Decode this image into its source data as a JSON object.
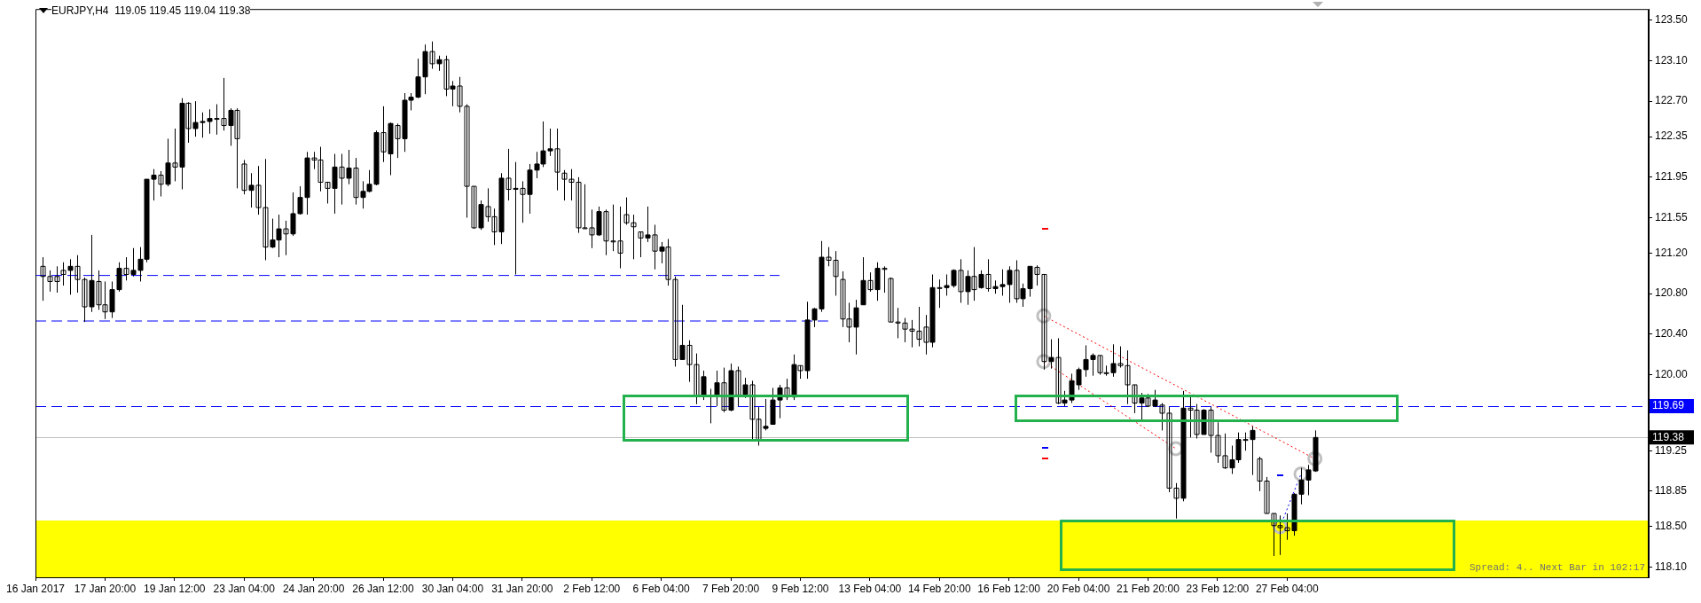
{
  "chart_data": {
    "type": "candlestick",
    "title": "EURJPY,H4  119.05 119.45 119.04 119.38",
    "color": "#000000",
    "categories": [
      "16 Jan 2017",
      null,
      null,
      null,
      null,
      null,
      null,
      null,
      null,
      null,
      "17 Jan 20:00",
      null,
      null,
      null,
      null,
      null,
      null,
      null,
      null,
      null,
      "19 Jan 12:00",
      null,
      null,
      null,
      null,
      null,
      null,
      null,
      null,
      null,
      "23 Jan 04:00",
      null,
      null,
      null,
      null,
      null,
      null,
      null,
      null,
      null,
      "24 Jan 20:00",
      null,
      null,
      null,
      null,
      null,
      null,
      null,
      null,
      null,
      "26 Jan 12:00",
      null,
      null,
      null,
      null,
      null,
      null,
      null,
      null,
      null,
      "30 Jan 04:00",
      null,
      null,
      null,
      null,
      null,
      null,
      null,
      null,
      null,
      "31 Jan 20:00",
      null,
      null,
      null,
      null,
      null,
      null,
      null,
      null,
      null,
      "2 Feb 12:00",
      null,
      null,
      null,
      null,
      null,
      null,
      null,
      null,
      null,
      "6 Feb 04:00",
      null,
      null,
      null,
      null,
      null,
      null,
      null,
      null,
      null,
      "7 Feb 20:00",
      null,
      null,
      null,
      null,
      null,
      null,
      null,
      null,
      null,
      "9 Feb 12:00",
      null,
      null,
      null,
      null,
      null,
      null,
      null,
      null,
      null,
      "13 Feb 04:00",
      null,
      null,
      null,
      null,
      null,
      null,
      null,
      null,
      null,
      "14 Feb 20:00",
      null,
      null,
      null,
      null,
      null,
      null,
      null,
      null,
      null,
      "16 Feb 12:00",
      null,
      null,
      null,
      null,
      null,
      null,
      null,
      null,
      null,
      "20 Feb 04:00",
      null,
      null,
      null,
      null,
      null,
      null,
      null,
      null,
      null,
      "21 Feb 20:00",
      null,
      null,
      null,
      null,
      null,
      null,
      null,
      null,
      null,
      "23 Feb 12:00",
      null,
      null,
      null,
      null,
      null,
      null,
      null,
      null,
      null,
      "27 Feb 04:00",
      null,
      null,
      null,
      null,
      null,
      null,
      null,
      null,
      null,
      null,
      null,
      null,
      null,
      null,
      null,
      null,
      null,
      null,
      null,
      null,
      null,
      null,
      null,
      null,
      null,
      null,
      null,
      null,
      null,
      null,
      null,
      null,
      null,
      null,
      null,
      null,
      null,
      null,
      null,
      null,
      null,
      null,
      null,
      null,
      null,
      null,
      null,
      null,
      null,
      null,
      null,
      null
    ],
    "ohlc": [
      null,
      [
        121.07,
        121.16,
        120.73,
        120.97
      ],
      [
        120.97,
        121.03,
        120.82,
        120.92
      ],
      [
        120.97,
        121.07,
        120.81,
        120.92
      ],
      [
        121.03,
        121.11,
        120.88,
        120.99
      ],
      [
        121.03,
        121.14,
        120.79,
        121.07
      ],
      [
        121.07,
        121.18,
        120.81,
        120.94
      ],
      [
        120.94,
        120.96,
        120.52,
        120.67
      ],
      [
        120.67,
        121.38,
        120.62,
        120.93
      ],
      [
        120.92,
        121.03,
        120.64,
        120.69
      ],
      [
        120.69,
        120.92,
        120.55,
        120.62
      ],
      [
        120.62,
        120.92,
        120.56,
        120.84
      ],
      [
        120.84,
        121.11,
        120.82,
        121.05
      ],
      [
        121.05,
        121.16,
        120.93,
        120.99
      ],
      [
        120.99,
        121.25,
        120.97,
        121.03
      ],
      [
        121.03,
        121.26,
        120.92,
        121.14
      ],
      [
        121.14,
        121.93,
        121.11,
        121.93
      ],
      [
        121.93,
        122.03,
        121.72,
        121.97
      ],
      [
        121.97,
        122.01,
        121.76,
        121.88
      ],
      [
        121.88,
        122.33,
        121.86,
        122.09
      ],
      [
        122.09,
        122.43,
        121.91,
        122.05
      ],
      [
        122.05,
        122.73,
        121.83,
        122.68
      ],
      [
        122.68,
        122.69,
        122.29,
        122.43
      ],
      [
        122.43,
        122.7,
        122.35,
        122.49
      ],
      [
        122.49,
        122.59,
        122.34,
        122.5
      ],
      [
        122.5,
        122.62,
        122.38,
        122.53
      ],
      [
        122.53,
        122.67,
        122.37,
        122.53
      ],
      [
        122.53,
        122.93,
        122.41,
        122.46
      ],
      [
        122.46,
        122.63,
        122.26,
        122.61
      ],
      [
        122.61,
        122.63,
        121.84,
        122.33
      ],
      [
        122.08,
        122.12,
        121.78,
        121.82
      ],
      [
        121.82,
        121.99,
        121.65,
        121.87
      ],
      [
        121.87,
        122.06,
        121.58,
        121.65
      ],
      [
        121.65,
        122.13,
        121.13,
        121.26
      ],
      [
        121.26,
        121.54,
        121.25,
        121.33
      ],
      [
        121.33,
        121.58,
        121.16,
        121.44
      ],
      [
        121.44,
        121.52,
        121.18,
        121.39
      ],
      [
        121.39,
        121.8,
        121.37,
        121.59
      ],
      [
        121.59,
        121.86,
        121.58,
        121.75
      ],
      [
        121.75,
        122.2,
        121.58,
        122.14
      ],
      [
        122.14,
        122.2,
        122.03,
        122.12
      ],
      [
        122.12,
        122.25,
        121.81,
        121.9
      ],
      [
        121.9,
        121.9,
        121.69,
        121.84
      ],
      [
        121.84,
        122.18,
        121.59,
        122.05
      ],
      [
        122.05,
        122.18,
        121.68,
        121.94
      ],
      [
        121.94,
        122.22,
        121.88,
        122.04
      ],
      [
        122.04,
        122.14,
        121.68,
        121.75
      ],
      [
        121.75,
        121.91,
        121.64,
        121.81
      ],
      [
        121.81,
        122.02,
        121.8,
        121.88
      ],
      [
        121.88,
        122.41,
        121.87,
        122.39
      ],
      [
        122.39,
        122.65,
        122.1,
        122.2
      ],
      [
        122.18,
        122.49,
        121.97,
        122.48
      ],
      [
        122.46,
        122.48,
        122.14,
        122.33
      ],
      [
        122.33,
        122.78,
        122.2,
        122.71
      ],
      [
        122.71,
        122.78,
        122.61,
        122.74
      ],
      [
        122.74,
        123.12,
        122.73,
        122.94
      ],
      [
        122.94,
        123.26,
        122.77,
        123.19
      ],
      [
        123.19,
        123.29,
        123.02,
        123.07
      ],
      [
        123.07,
        123.15,
        123.0,
        123.11
      ],
      [
        123.11,
        123.15,
        122.75,
        122.82
      ],
      [
        122.82,
        122.9,
        122.65,
        122.85
      ],
      [
        122.85,
        122.94,
        122.59,
        122.65
      ],
      [
        122.65,
        122.67,
        121.55,
        121.86
      ],
      [
        121.86,
        121.86,
        121.44,
        121.45
      ],
      [
        121.45,
        121.72,
        121.43,
        121.68
      ],
      [
        121.66,
        121.84,
        121.51,
        121.56
      ],
      [
        121.56,
        121.64,
        121.28,
        121.41
      ],
      [
        121.41,
        121.99,
        121.29,
        121.94
      ],
      [
        121.94,
        122.23,
        121.72,
        121.83
      ],
      [
        121.83,
        122.1,
        120.99,
        121.84
      ],
      [
        121.84,
        121.91,
        121.5,
        121.78
      ],
      [
        121.78,
        122.08,
        121.59,
        122.02
      ],
      [
        122.02,
        122.2,
        121.94,
        122.08
      ],
      [
        122.08,
        122.5,
        122.05,
        122.21
      ],
      [
        122.21,
        122.43,
        122.16,
        122.23
      ],
      [
        122.23,
        122.43,
        121.82,
        122.0
      ],
      [
        121.99,
        122.02,
        121.72,
        121.93
      ],
      [
        121.93,
        122.03,
        121.72,
        121.9
      ],
      [
        121.9,
        121.95,
        121.4,
        121.45
      ],
      [
        121.45,
        121.88,
        121.44,
        121.45
      ],
      [
        121.45,
        121.63,
        121.25,
        121.38
      ],
      [
        121.38,
        121.66,
        121.37,
        121.61
      ],
      [
        121.61,
        121.63,
        121.18,
        121.32
      ],
      [
        121.32,
        121.68,
        121.22,
        121.32
      ],
      [
        121.32,
        121.66,
        121.05,
        121.2
      ],
      [
        121.58,
        121.75,
        121.48,
        121.5
      ],
      [
        121.5,
        121.58,
        121.14,
        121.46
      ],
      [
        121.41,
        121.41,
        121.16,
        121.35
      ],
      [
        121.35,
        121.66,
        121.31,
        121.38
      ],
      [
        121.38,
        121.48,
        121.04,
        121.22
      ],
      [
        121.22,
        121.31,
        121.1,
        121.26
      ],
      [
        121.26,
        121.34,
        120.88,
        120.94
      ],
      [
        120.94,
        120.97,
        120.08,
        120.15
      ],
      [
        120.15,
        120.69,
        120.15,
        120.29
      ],
      [
        120.29,
        120.34,
        119.93,
        120.1
      ],
      [
        120.1,
        120.21,
        119.71,
        119.79
      ],
      [
        119.79,
        120.04,
        119.75,
        119.98
      ],
      [
        119.79,
        119.86,
        119.52,
        119.79
      ],
      [
        119.79,
        120.04,
        119.69,
        119.92
      ],
      [
        119.92,
        120.07,
        119.63,
        119.65
      ],
      [
        119.65,
        120.11,
        119.64,
        120.04
      ],
      [
        120.04,
        120.08,
        119.69,
        119.8
      ],
      [
        119.8,
        119.97,
        119.77,
        119.9
      ],
      [
        119.9,
        119.94,
        119.34,
        119.56
      ],
      [
        119.56,
        119.68,
        119.3,
        119.35
      ],
      [
        119.47,
        119.76,
        119.45,
        119.49
      ],
      [
        119.51,
        119.87,
        119.51,
        119.75
      ],
      [
        119.75,
        119.9,
        119.57,
        119.87
      ],
      [
        119.87,
        119.96,
        119.75,
        119.78
      ],
      [
        119.78,
        120.2,
        119.75,
        120.1
      ],
      [
        120.09,
        120.09,
        119.96,
        120.04
      ],
      [
        120.04,
        120.72,
        119.96,
        120.54
      ],
      [
        120.54,
        120.66,
        120.47,
        120.65
      ],
      [
        120.65,
        121.32,
        120.62,
        121.16
      ],
      [
        121.16,
        121.26,
        121.07,
        121.13
      ],
      [
        121.13,
        121.22,
        120.78,
        120.97
      ],
      [
        120.94,
        121.02,
        120.47,
        120.55
      ],
      [
        120.55,
        120.71,
        120.32,
        120.47
      ],
      [
        120.47,
        120.74,
        120.2,
        120.66
      ],
      [
        120.69,
        121.16,
        120.69,
        120.93
      ],
      [
        120.93,
        121.01,
        120.82,
        120.84
      ],
      [
        120.84,
        121.11,
        120.73,
        121.05
      ],
      [
        121.05,
        121.07,
        120.81,
        121.04
      ],
      [
        120.95,
        120.96,
        120.52,
        120.52
      ],
      [
        120.52,
        120.66,
        120.36,
        120.51
      ],
      [
        120.51,
        120.56,
        120.32,
        120.45
      ],
      [
        120.45,
        120.54,
        120.27,
        120.43
      ],
      [
        120.43,
        120.67,
        120.28,
        120.35
      ],
      [
        120.47,
        120.59,
        120.2,
        120.32
      ],
      [
        120.32,
        120.99,
        120.27,
        120.86
      ],
      [
        120.86,
        120.94,
        120.66,
        120.86
      ],
      [
        120.86,
        120.99,
        120.78,
        120.88
      ],
      [
        120.88,
        121.04,
        120.86,
        121.03
      ],
      [
        121.03,
        121.14,
        120.71,
        120.82
      ],
      [
        120.82,
        121.03,
        120.69,
        120.97
      ],
      [
        120.97,
        121.26,
        120.73,
        120.84
      ],
      [
        120.86,
        121.03,
        120.85,
        120.99
      ],
      [
        120.99,
        121.14,
        120.82,
        120.85
      ],
      [
        120.85,
        120.93,
        120.8,
        120.87
      ],
      [
        120.87,
        121.04,
        120.78,
        120.89
      ],
      [
        120.89,
        121.07,
        120.71,
        121.03
      ],
      [
        121.03,
        121.13,
        120.71,
        120.75
      ],
      [
        120.75,
        120.9,
        120.67,
        120.85
      ],
      [
        120.85,
        121.07,
        120.77,
        121.07
      ],
      [
        121.06,
        121.08,
        120.88,
        120.99
      ],
      [
        120.99,
        120.99,
        120.05,
        120.13
      ],
      [
        120.13,
        120.35,
        120.06,
        120.17
      ],
      [
        120.17,
        120.36,
        119.71,
        119.72
      ],
      [
        119.72,
        119.84,
        119.69,
        119.75
      ],
      [
        119.75,
        120.01,
        119.72,
        119.94
      ],
      [
        119.9,
        120.07,
        119.85,
        120.05
      ],
      [
        120.05,
        120.29,
        119.98,
        120.15
      ],
      [
        120.15,
        120.21,
        119.99,
        120.19
      ],
      [
        120.19,
        120.19,
        120.0,
        120.02
      ],
      [
        120.02,
        120.09,
        119.99,
        120.02
      ],
      [
        120.02,
        120.3,
        119.98,
        120.11
      ],
      [
        120.11,
        120.28,
        120.07,
        120.09
      ],
      [
        120.09,
        120.24,
        119.71,
        119.9
      ],
      [
        119.9,
        119.9,
        119.62,
        119.72
      ],
      [
        119.72,
        119.82,
        119.55,
        119.77
      ],
      [
        119.77,
        119.81,
        119.68,
        119.69
      ],
      [
        119.69,
        119.85,
        119.68,
        119.75
      ],
      [
        119.7,
        119.72,
        119.45,
        119.62
      ],
      [
        119.62,
        119.68,
        118.84,
        118.88
      ],
      [
        118.88,
        118.93,
        118.58,
        118.78
      ],
      [
        118.78,
        119.84,
        118.75,
        119.67
      ],
      [
        119.67,
        119.79,
        119.38,
        119.65
      ],
      [
        119.65,
        119.71,
        119.37,
        119.41
      ],
      [
        119.41,
        119.66,
        119.41,
        119.65
      ],
      [
        119.65,
        119.68,
        119.23,
        119.4
      ],
      [
        119.4,
        119.53,
        119.13,
        119.2
      ],
      [
        119.2,
        119.42,
        119.07,
        119.08
      ],
      [
        119.08,
        119.3,
        119.02,
        119.16
      ],
      [
        119.16,
        119.43,
        119.13,
        119.36
      ],
      [
        119.36,
        119.43,
        119.25,
        119.36
      ],
      [
        119.36,
        119.49,
        119.01,
        119.45
      ],
      [
        119.17,
        119.19,
        118.85,
        118.95
      ],
      [
        118.95,
        118.99,
        118.63,
        118.63
      ],
      [
        118.63,
        118.63,
        118.21,
        118.51
      ],
      [
        118.51,
        118.61,
        118.22,
        118.49
      ],
      [
        118.49,
        118.63,
        118.37,
        118.46
      ],
      [
        118.46,
        118.83,
        118.41,
        118.82
      ],
      [
        118.82,
        119.08,
        118.72,
        118.96
      ],
      [
        118.96,
        119.11,
        118.81,
        119.06
      ],
      [
        119.05,
        119.45,
        119.04,
        119.38
      ],
      null,
      null,
      null,
      null,
      null,
      null,
      null,
      null,
      null,
      null,
      null,
      null,
      null,
      null,
      null,
      null,
      null,
      null,
      null,
      null,
      null,
      null,
      null,
      null,
      null,
      null,
      null,
      null,
      null,
      null,
      null,
      null,
      null,
      null,
      null,
      null,
      null,
      null,
      null,
      null,
      null,
      null,
      null,
      null,
      null,
      null,
      null,
      null
    ],
    "ylim": [
      118.0,
      123.61
    ],
    "yticks": [
      {
        "value": 118.1,
        "label": "118.10"
      },
      {
        "value": 118.5,
        "label": "118.50"
      },
      {
        "value": 118.85,
        "label": "118.85"
      },
      {
        "value": 119.25,
        "label": "119.25"
      },
      {
        "value": 120,
        "label": "120.00"
      },
      {
        "value": 120.4,
        "label": "120.40"
      },
      {
        "value": 120.8,
        "label": "120.80"
      },
      {
        "value": 121.2,
        "label": "121.20"
      },
      {
        "value": 121.55,
        "label": "121.55"
      },
      {
        "value": 121.95,
        "label": "121.95"
      },
      {
        "value": 122.35,
        "label": "122.35"
      },
      {
        "value": 122.7,
        "label": "122.70"
      },
      {
        "value": 123.1,
        "label": "123.10"
      },
      {
        "value": 123.5,
        "label": "123.50"
      }
    ],
    "grid": false,
    "legend": false,
    "marker": "circle",
    "series": [
      {
        "type": "line",
        "color": "#0000ff",
        "line_style": "dashed",
        "marker": "none",
        "values": [
          120.98,
          null,
          null,
          null,
          null,
          null,
          null,
          null,
          null,
          null,
          null,
          null,
          null,
          null,
          null,
          null,
          null,
          null,
          null,
          null,
          null,
          null,
          null,
          null,
          null,
          null,
          null,
          null,
          null,
          null,
          null,
          null,
          null,
          null,
          null,
          null,
          null,
          null,
          null,
          null,
          null,
          null,
          null,
          null,
          null,
          null,
          null,
          null,
          null,
          null,
          null,
          null,
          null,
          null,
          null,
          null,
          null,
          null,
          null,
          null,
          null,
          null,
          null,
          null,
          null,
          null,
          null,
          null,
          null,
          null,
          null,
          null,
          null,
          null,
          null,
          null,
          null,
          null,
          null,
          null,
          null,
          null,
          null,
          null,
          null,
          null,
          null,
          null,
          null,
          null,
          null,
          null,
          null,
          null,
          null,
          null,
          null,
          null,
          null,
          null,
          null,
          null,
          null,
          null,
          null,
          null,
          null,
          120.98,
          null,
          null,
          null,
          null,
          null,
          null,
          null,
          null,
          null,
          null,
          null,
          null,
          null,
          null,
          null,
          null,
          null,
          null,
          null,
          null,
          null,
          null,
          null,
          null,
          null,
          null,
          null,
          null,
          null,
          null,
          null,
          null,
          null,
          null,
          null,
          null,
          null,
          null,
          null,
          null,
          null,
          null,
          null,
          null,
          null,
          null,
          null,
          null,
          null,
          null,
          null,
          null,
          null,
          null,
          null,
          null,
          null,
          null,
          null,
          null,
          null,
          null,
          null,
          null,
          null,
          null,
          null,
          null,
          null,
          null,
          null,
          null,
          null,
          null,
          null,
          null,
          null,
          null,
          null,
          null,
          null,
          null,
          null,
          null,
          null,
          null,
          null,
          null,
          null,
          null,
          null,
          null,
          null,
          null,
          null,
          null,
          null,
          null,
          null,
          null,
          null,
          null,
          null,
          null,
          null,
          null,
          null,
          null,
          null,
          null,
          null,
          null,
          null,
          null,
          null,
          null,
          null,
          null,
          null,
          null,
          null,
          null,
          null,
          null,
          null
        ]
      },
      {
        "type": "line",
        "color": "#0000ff",
        "line_style": "dashed",
        "marker": "none",
        "values": [
          120.53,
          null,
          null,
          null,
          null,
          null,
          null,
          null,
          null,
          null,
          null,
          null,
          null,
          null,
          null,
          null,
          null,
          null,
          null,
          null,
          null,
          null,
          null,
          null,
          null,
          null,
          null,
          null,
          null,
          null,
          null,
          null,
          null,
          null,
          null,
          null,
          null,
          null,
          null,
          null,
          null,
          null,
          null,
          null,
          null,
          null,
          null,
          null,
          null,
          null,
          null,
          null,
          null,
          null,
          null,
          null,
          null,
          null,
          null,
          null,
          null,
          null,
          null,
          null,
          null,
          null,
          null,
          null,
          null,
          null,
          null,
          null,
          null,
          null,
          null,
          null,
          null,
          null,
          null,
          null,
          null,
          null,
          null,
          null,
          null,
          null,
          null,
          null,
          null,
          null,
          null,
          null,
          null,
          null,
          null,
          null,
          null,
          null,
          null,
          null,
          null,
          null,
          null,
          null,
          null,
          null,
          null,
          null,
          null,
          null,
          null,
          null,
          null,
          null,
          120.53,
          null,
          null,
          null,
          null,
          null,
          null,
          null,
          null,
          null,
          null,
          null,
          null,
          null,
          null,
          null,
          null,
          null,
          null,
          null,
          null,
          null,
          null,
          null,
          null,
          null,
          null,
          null,
          null,
          null,
          null,
          null,
          null,
          null,
          null,
          null,
          null,
          null,
          null,
          null,
          null,
          null,
          null,
          null,
          null,
          null,
          null,
          null,
          null,
          null,
          null,
          null,
          null,
          null,
          null,
          null,
          null,
          null,
          null,
          null,
          null,
          null,
          null,
          null,
          null,
          null,
          null,
          null,
          null,
          null,
          null,
          null,
          null,
          null,
          null,
          null,
          null,
          null,
          null,
          null,
          null,
          null,
          null,
          null,
          null,
          null,
          null,
          null,
          null,
          null,
          null,
          null,
          null,
          null,
          null,
          null,
          null,
          null,
          null,
          null,
          null,
          null,
          null,
          null,
          null,
          null,
          null,
          null,
          null,
          null,
          null,
          null,
          null,
          null,
          null,
          null,
          null,
          null,
          null
        ]
      },
      {
        "type": "line",
        "color": "#ff0000",
        "line_style": "dotted",
        "values": [
          null,
          null,
          null,
          null,
          null,
          null,
          null,
          null,
          null,
          null,
          null,
          null,
          null,
          null,
          null,
          null,
          null,
          null,
          null,
          null,
          null,
          null,
          null,
          null,
          null,
          null,
          null,
          null,
          null,
          null,
          null,
          null,
          null,
          null,
          null,
          null,
          null,
          null,
          null,
          null,
          null,
          null,
          null,
          null,
          null,
          null,
          null,
          null,
          null,
          null,
          null,
          null,
          null,
          null,
          null,
          null,
          null,
          null,
          null,
          null,
          null,
          null,
          null,
          null,
          null,
          null,
          null,
          null,
          null,
          null,
          null,
          null,
          null,
          null,
          null,
          null,
          null,
          null,
          null,
          null,
          null,
          null,
          null,
          null,
          null,
          null,
          null,
          null,
          null,
          null,
          null,
          null,
          null,
          null,
          null,
          null,
          null,
          null,
          null,
          null,
          null,
          null,
          null,
          null,
          null,
          null,
          null,
          null,
          null,
          null,
          null,
          null,
          null,
          null,
          null,
          null,
          null,
          null,
          null,
          null,
          null,
          null,
          null,
          null,
          null,
          null,
          null,
          null,
          null,
          null,
          null,
          null,
          null,
          null,
          null,
          null,
          null,
          null,
          null,
          null,
          null,
          null,
          null,
          null,
          null,
          120.58,
          null,
          null,
          null,
          null,
          null,
          null,
          null,
          null,
          null,
          null,
          null,
          null,
          null,
          null,
          null,
          null,
          null,
          null,
          null,
          null,
          null,
          null,
          null,
          null,
          null,
          null,
          null,
          null,
          null,
          null,
          null,
          null,
          null,
          null,
          null,
          null,
          null,
          null,
          119.17,
          null,
          null,
          null,
          null,
          null,
          null,
          null,
          null,
          null,
          null,
          null,
          null,
          null,
          null,
          null,
          null,
          null,
          null,
          null,
          null,
          null,
          null,
          null,
          null,
          null,
          null,
          null,
          null,
          null,
          null,
          null,
          null,
          null,
          null,
          null,
          null,
          null,
          null,
          null,
          null,
          null,
          null,
          null,
          null,
          null,
          null,
          null,
          null
        ]
      },
      {
        "type": "line",
        "color": "#ff0000",
        "line_style": "dotted",
        "values": [
          null,
          null,
          null,
          null,
          null,
          null,
          null,
          null,
          null,
          null,
          null,
          null,
          null,
          null,
          null,
          null,
          null,
          null,
          null,
          null,
          null,
          null,
          null,
          null,
          null,
          null,
          null,
          null,
          null,
          null,
          null,
          null,
          null,
          null,
          null,
          null,
          null,
          null,
          null,
          null,
          null,
          null,
          null,
          null,
          null,
          null,
          null,
          null,
          null,
          null,
          null,
          null,
          null,
          null,
          null,
          null,
          null,
          null,
          null,
          null,
          null,
          null,
          null,
          null,
          null,
          null,
          null,
          null,
          null,
          null,
          null,
          null,
          null,
          null,
          null,
          null,
          null,
          null,
          null,
          null,
          null,
          null,
          null,
          null,
          null,
          null,
          null,
          null,
          null,
          null,
          null,
          null,
          null,
          null,
          null,
          null,
          null,
          null,
          null,
          null,
          null,
          null,
          null,
          null,
          null,
          null,
          null,
          null,
          null,
          null,
          null,
          null,
          null,
          null,
          null,
          null,
          null,
          null,
          null,
          null,
          null,
          null,
          null,
          null,
          null,
          null,
          null,
          null,
          null,
          null,
          null,
          null,
          null,
          null,
          null,
          null,
          null,
          null,
          null,
          null,
          null,
          null,
          null,
          null,
          null,
          120.13,
          null,
          null,
          null,
          null,
          null,
          null,
          null,
          null,
          null,
          null,
          null,
          null,
          null,
          null,
          null,
          null,
          null,
          null,
          119.27,
          null,
          null,
          null,
          null,
          null,
          null,
          null,
          null,
          null,
          null,
          null,
          null,
          null,
          null,
          null,
          null,
          null,
          null,
          null,
          null,
          null,
          null,
          null,
          null,
          null,
          null,
          null,
          null,
          null,
          null,
          null,
          null,
          null,
          null,
          null,
          null,
          null,
          null,
          null,
          null,
          null,
          null,
          null,
          null,
          null,
          null,
          null,
          null,
          null,
          null,
          null,
          null,
          null,
          null,
          null,
          null,
          null,
          null,
          null,
          null,
          null,
          null,
          null,
          null,
          null,
          null,
          null,
          null
        ]
      },
      {
        "type": "line",
        "color": "#0000ff",
        "line_style": "dotted",
        "values": [
          null,
          null,
          null,
          null,
          null,
          null,
          null,
          null,
          null,
          null,
          null,
          null,
          null,
          null,
          null,
          null,
          null,
          null,
          null,
          null,
          null,
          null,
          null,
          null,
          null,
          null,
          null,
          null,
          null,
          null,
          null,
          null,
          null,
          null,
          null,
          null,
          null,
          null,
          null,
          null,
          null,
          null,
          null,
          null,
          null,
          null,
          null,
          null,
          null,
          null,
          null,
          null,
          null,
          null,
          null,
          null,
          null,
          null,
          null,
          null,
          null,
          null,
          null,
          null,
          null,
          null,
          null,
          null,
          null,
          null,
          null,
          null,
          null,
          null,
          null,
          null,
          null,
          null,
          null,
          null,
          null,
          null,
          null,
          null,
          null,
          null,
          null,
          null,
          null,
          null,
          null,
          null,
          null,
          null,
          null,
          null,
          null,
          null,
          null,
          null,
          null,
          null,
          null,
          null,
          null,
          null,
          null,
          null,
          null,
          null,
          null,
          null,
          null,
          null,
          null,
          null,
          null,
          null,
          null,
          null,
          null,
          null,
          null,
          null,
          null,
          null,
          null,
          null,
          null,
          null,
          null,
          null,
          null,
          null,
          null,
          null,
          null,
          null,
          null,
          null,
          null,
          null,
          null,
          null,
          null,
          null,
          null,
          null,
          null,
          null,
          null,
          null,
          null,
          null,
          null,
          null,
          null,
          null,
          null,
          null,
          null,
          null,
          null,
          null,
          null,
          null,
          null,
          null,
          null,
          null,
          null,
          null,
          null,
          null,
          null,
          null,
          null,
          null,
          null,
          118.5,
          null,
          null,
          119.02,
          null,
          null,
          null,
          null,
          null,
          null,
          null,
          null,
          null,
          null,
          null,
          null,
          null,
          null,
          null,
          null,
          null,
          null,
          null,
          null,
          null,
          null,
          null,
          null,
          null,
          null,
          null,
          null,
          null,
          null,
          null,
          null,
          null,
          null,
          null,
          null,
          null,
          null,
          null,
          null,
          null,
          null,
          null,
          null,
          null,
          null,
          null,
          null,
          null,
          null
        ]
      }
    ],
    "ref_lines": [
      {
        "axis": "y",
        "value": 119.69,
        "label": "119.69",
        "color": "#0000ff",
        "line_style": "dashed"
      },
      {
        "axis": "y",
        "value": 119.38,
        "label": "119.38",
        "color": "#c0c0c0",
        "line_style": "solid"
      }
    ],
    "bands": [
      {
        "axis": "y",
        "from": 118.0,
        "to": 118.56,
        "color": "#ffff00"
      }
    ],
    "annotations": [
      "Spread: 4.. Next Bar in 102:17"
    ]
  }
}
